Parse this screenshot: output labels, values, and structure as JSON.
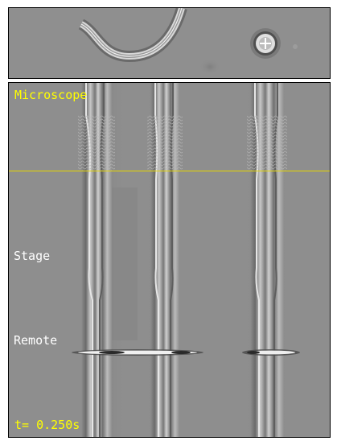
{
  "labels": {
    "microscope": "Microscope",
    "stage": "Stage",
    "remote": "Remote",
    "time": "t= 0.250s"
  },
  "colors": {
    "highlight_text": "#ffff00",
    "plain_text": "#ffffff",
    "divider": "#e6d600",
    "background_gray": "#8e8e8e",
    "frame": "#000000"
  }
}
